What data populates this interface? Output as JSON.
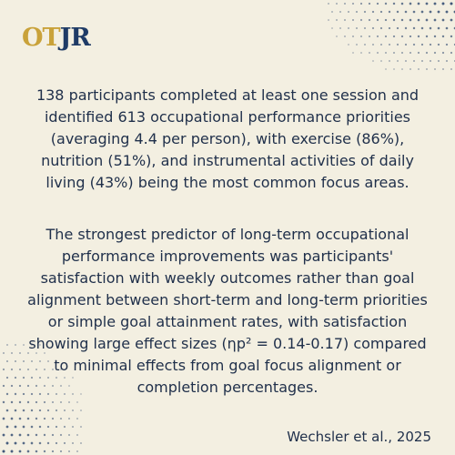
{
  "logo": {
    "text_part1": "OT",
    "text_part2": "JR",
    "gold_color": "#c9a23a",
    "navy_color": "#1f3b66"
  },
  "colors": {
    "background": "#f3efe1",
    "text": "#1f2f4a",
    "dots": "#1f3b66"
  },
  "paragraphs": [
    "138 participants completed at least one session and identified 613 occupational performance priorities (averaging 4.4 per person), with exercise (86%), nutrition (51%), and instrumental activities of daily living (43%) being the most common focus areas.",
    "The strongest predictor of long-term occupational performance improvements was participants' satisfaction with weekly outcomes rather than goal alignment between short-term and long-term priorities or simple goal attainment rates, with satisfaction showing large effect sizes (ηp² = 0.14-0.17) compared to minimal effects from goal focus alignment or completion percentages."
  ],
  "citation": "Wechsler et al., 2025"
}
